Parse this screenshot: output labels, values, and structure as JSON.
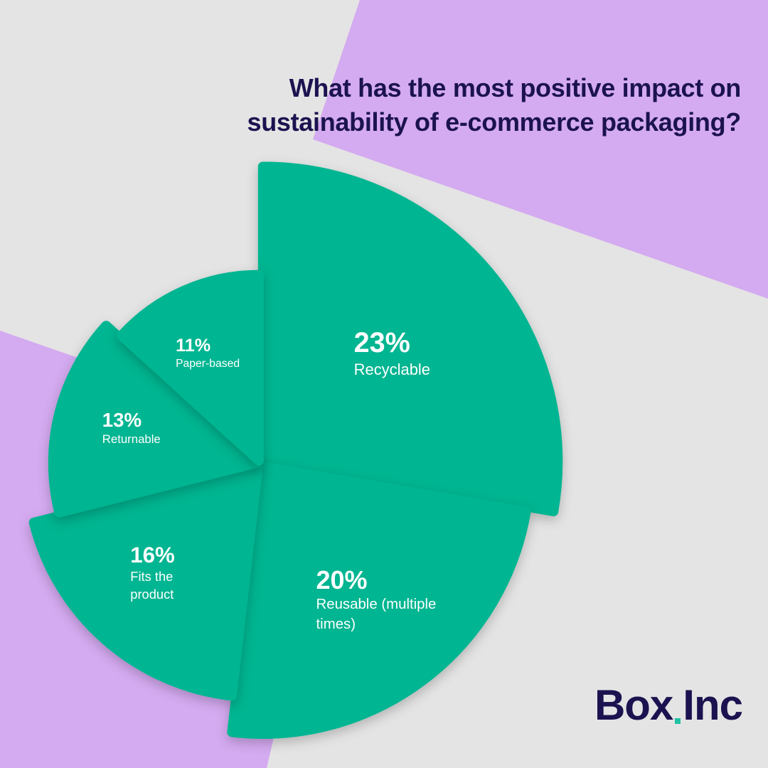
{
  "title": "What has the most positive impact on sustainability of e-commerce packaging?",
  "chart_data": {
    "type": "pie",
    "color": "#00b591",
    "categories": [
      "Recyclable",
      "Reusable (multiple times)",
      "Fits the product",
      "Returnable",
      "Paper-based"
    ],
    "values": [
      23,
      20,
      16,
      13,
      11
    ],
    "value_labels": [
      "23%",
      "20%",
      "16%",
      "13%",
      "11%"
    ]
  },
  "logo": {
    "left": "Box",
    "right": "Inc"
  }
}
